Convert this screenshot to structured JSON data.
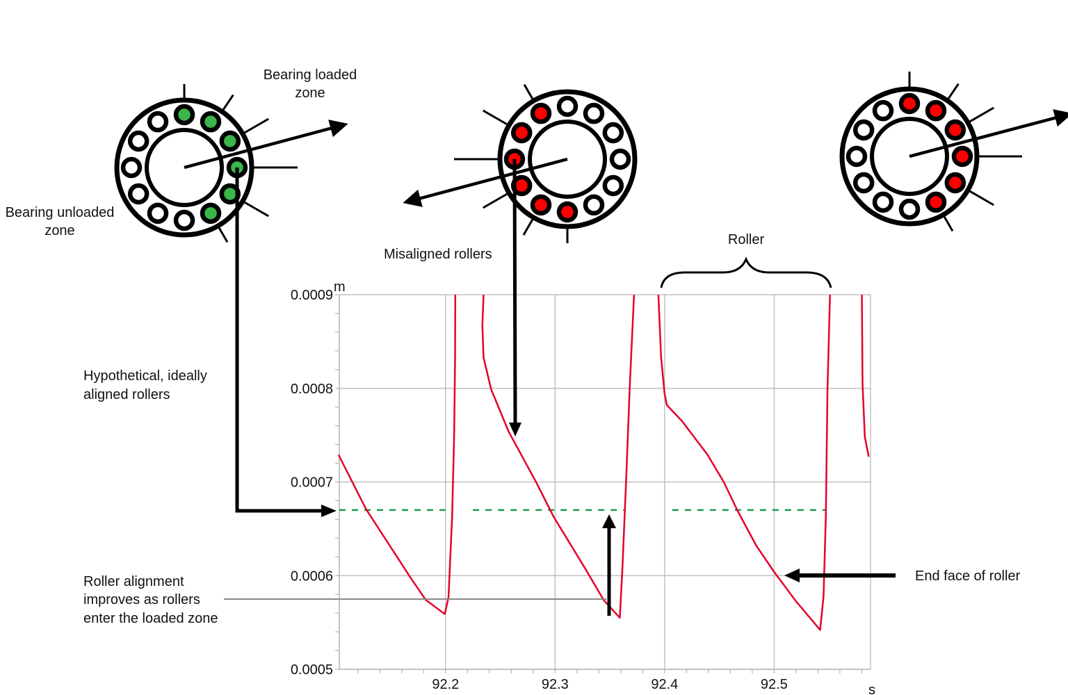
{
  "annotations": {
    "bearing_loaded_zone": [
      "Bearing loaded",
      "zone"
    ],
    "bearing_unloaded_zone": [
      "Bearing unloaded",
      "zone"
    ],
    "misaligned_rollers": "Misaligned rollers",
    "roller": "Roller",
    "hypothetical": [
      "Hypothetical, ideally",
      "aligned rollers"
    ],
    "roller_alignment": [
      "Roller alignment",
      "improves as rollers",
      "enter the loaded zone"
    ],
    "end_face": "End face of roller"
  },
  "bearings": [
    {
      "loaded_color": "#3cb54a",
      "rollers": [
        "loaded",
        "loaded",
        "loaded",
        "loaded",
        "loaded",
        "loaded",
        "unloaded",
        "unloaded",
        "unloaded",
        "unloaded",
        "unloaded",
        "unloaded"
      ]
    },
    {
      "loaded_color": "#ff0000",
      "rollers": [
        "unloaded",
        "unloaded",
        "unloaded",
        "unloaded",
        "unloaded",
        "unloaded",
        "loaded",
        "loaded",
        "loaded",
        "loaded",
        "loaded",
        "loaded"
      ]
    },
    {
      "loaded_color": "#ff0000",
      "rollers": [
        "loaded",
        "loaded",
        "loaded",
        "loaded",
        "loaded",
        "loaded",
        "unloaded",
        "unloaded",
        "unloaded",
        "unloaded",
        "unloaded",
        "unloaded"
      ]
    }
  ],
  "colors": {
    "curve": "#e4002b",
    "ideal_line": "#1a9a50",
    "grid": "#b4b4b4"
  },
  "chart_data": {
    "type": "line",
    "x_unit": "s",
    "y_unit": "m",
    "xlim": [
      92.103,
      92.588
    ],
    "ylim": [
      0.0005,
      0.0009
    ],
    "x_ticks": [
      92.2,
      92.3,
      92.4,
      92.5
    ],
    "x_tick_labels": [
      "92.2",
      "92.3",
      "92.4",
      "92.5"
    ],
    "y_ticks": [
      0.0005,
      0.0006,
      0.0007,
      0.0008,
      0.0009
    ],
    "y_tick_labels": [
      "0.0005",
      "0.0006",
      "0.0007",
      "0.0008",
      "0.0009"
    ],
    "x_minor_step": 0.02,
    "y_minor_step": 2e-05,
    "grid": true,
    "series": [
      {
        "segments": [
          [
            [
              92.1023,
              0.000729
            ],
            [
              92.1274,
              0.000671
            ],
            [
              92.1685,
              0.000597
            ],
            [
              92.182,
              0.000574
            ],
            [
              92.1993,
              0.000559
            ],
            [
              92.2027,
              0.000577
            ],
            [
              92.206,
              0.000663
            ],
            [
              92.2078,
              0.000748
            ],
            [
              92.2087,
              0.000833
            ],
            [
              92.2089,
              0.0009
            ]
          ],
          [
            [
              92.2347,
              0.0009
            ],
            [
              92.2336,
              0.000867
            ],
            [
              92.2347,
              0.000833
            ],
            [
              92.2416,
              0.000799
            ],
            [
              92.2575,
              0.000754
            ],
            [
              92.2826,
              0.0007
            ],
            [
              92.2986,
              0.000663
            ],
            [
              92.3283,
              0.000606
            ],
            [
              92.3443,
              0.000574
            ],
            [
              92.3591,
              0.000555
            ],
            [
              92.3614,
              0.000606
            ],
            [
              92.3648,
              0.0007
            ],
            [
              92.3683,
              0.000805
            ],
            [
              92.3721,
              0.0009
            ]
          ],
          [
            [
              92.3943,
              0.0009
            ],
            [
              92.3968,
              0.000833
            ],
            [
              92.4,
              0.000794
            ],
            [
              92.4021,
              0.000782
            ],
            [
              92.4159,
              0.000765
            ],
            [
              92.4392,
              0.000729
            ],
            [
              92.454,
              0.0007
            ],
            [
              92.4667,
              0.000669
            ],
            [
              92.4837,
              0.000632
            ],
            [
              92.5,
              0.000604
            ],
            [
              92.5197,
              0.000573
            ],
            [
              92.542,
              0.000542
            ],
            [
              92.5451,
              0.000578
            ],
            [
              92.5472,
              0.000663
            ],
            [
              92.5487,
              0.000799
            ],
            [
              92.551,
              0.0009
            ]
          ],
          [
            [
              92.5801,
              0.0009
            ],
            [
              92.5807,
              0.000805
            ],
            [
              92.5828,
              0.000748
            ],
            [
              92.5864,
              0.000727
            ]
          ]
        ]
      },
      {
        "style": "dashed",
        "value": 0.00067,
        "segments": [
          [
            92.103,
            92.2
          ],
          [
            92.225,
            92.363
          ],
          [
            92.407,
            92.547
          ]
        ]
      }
    ]
  }
}
